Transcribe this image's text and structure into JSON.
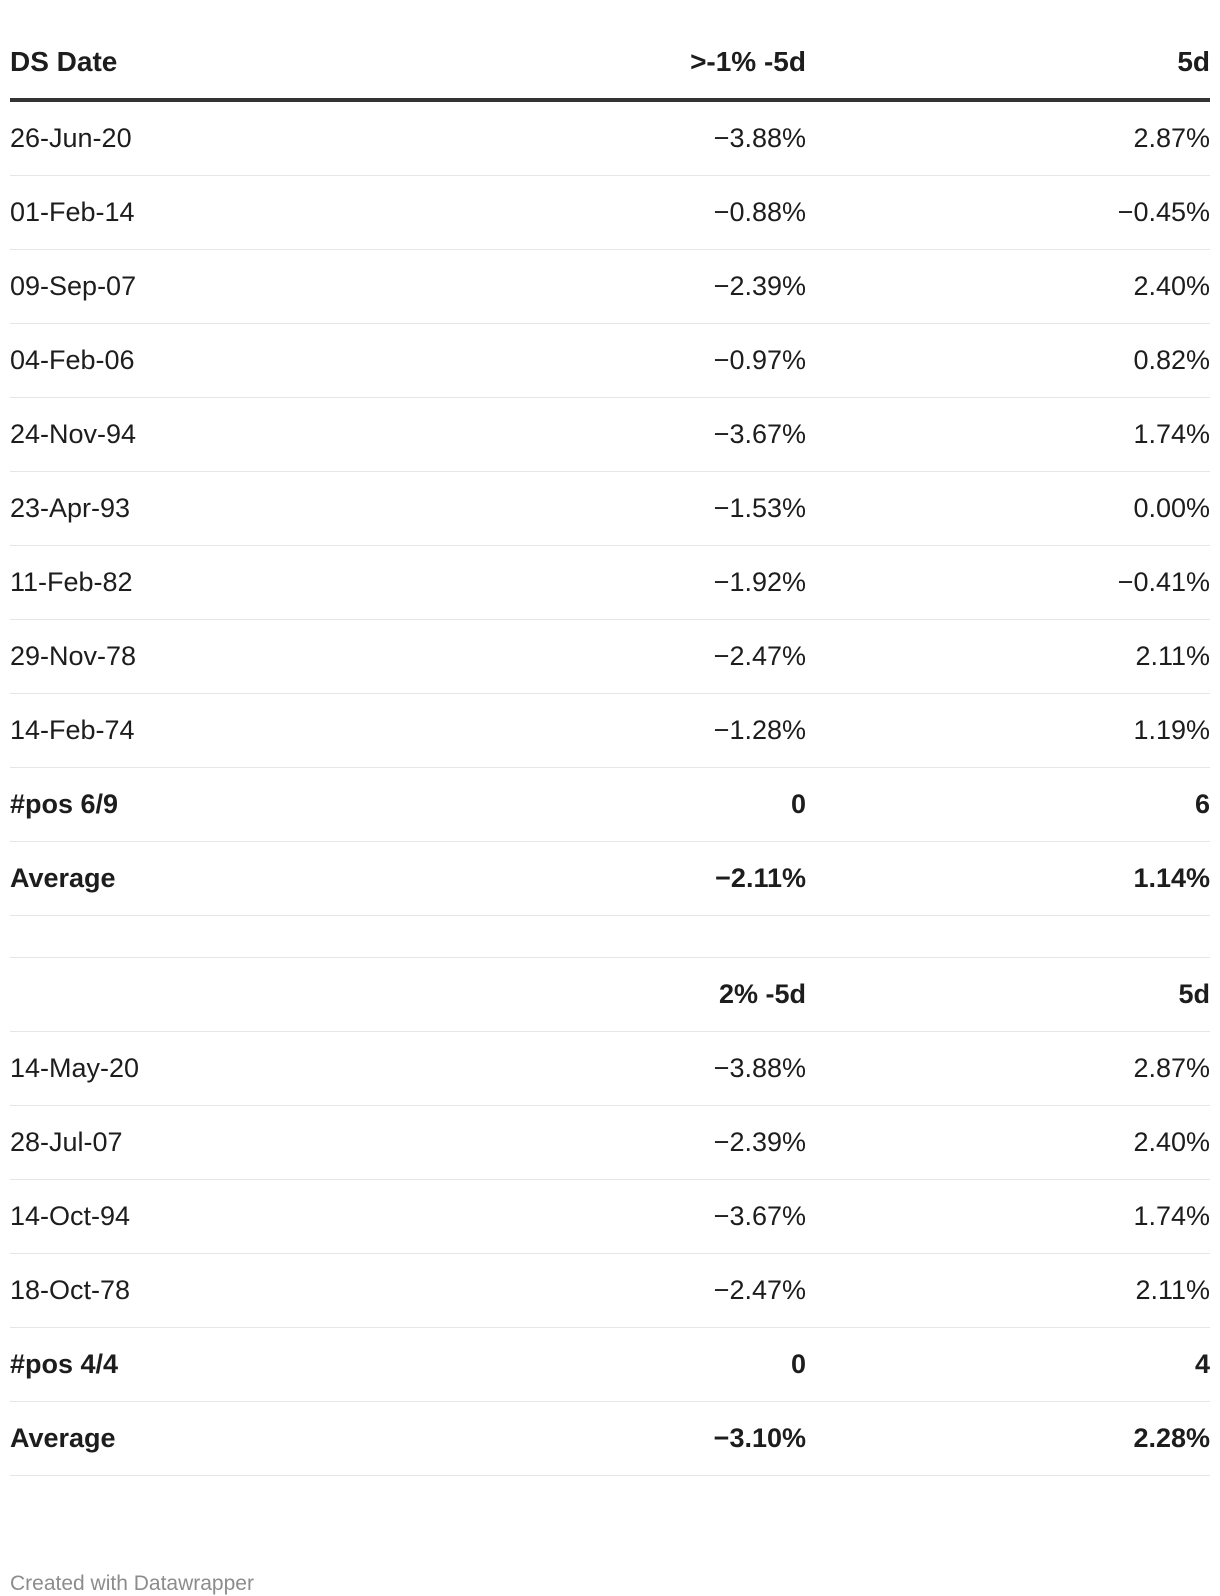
{
  "chart_data": {
    "type": "table",
    "columns": [
      "DS Date",
      ">-1% -5d",
      "5d"
    ],
    "sections": [
      {
        "rows": [
          [
            "26-Jun-20",
            "−3.88%",
            "2.87%"
          ],
          [
            "01-Feb-14",
            "−0.88%",
            "−0.45%"
          ],
          [
            "09-Sep-07",
            "−2.39%",
            "2.40%"
          ],
          [
            "04-Feb-06",
            "−0.97%",
            "0.82%"
          ],
          [
            "24-Nov-94",
            "−3.67%",
            "1.74%"
          ],
          [
            "23-Apr-93",
            "−1.53%",
            "0.00%"
          ],
          [
            "11-Feb-82",
            "−1.92%",
            "−0.41%"
          ],
          [
            "29-Nov-78",
            "−2.47%",
            "2.11%"
          ],
          [
            "14-Feb-74",
            "−1.28%",
            "1.19%"
          ]
        ],
        "summary": [
          [
            "#pos 6/9",
            "0",
            "6"
          ],
          [
            "Average",
            "−2.11%",
            "1.14%"
          ]
        ]
      },
      {
        "header": [
          "",
          "2% -5d",
          "5d"
        ],
        "rows": [
          [
            "14-May-20",
            "−3.88%",
            "2.87%"
          ],
          [
            "28-Jul-07",
            "−2.39%",
            "2.40%"
          ],
          [
            "14-Oct-94",
            "−3.67%",
            "1.74%"
          ],
          [
            "18-Oct-78",
            "−2.47%",
            "2.11%"
          ]
        ],
        "summary": [
          [
            "#pos 4/4",
            "0",
            "4"
          ],
          [
            "Average",
            "−3.10%",
            "2.28%"
          ]
        ]
      }
    ]
  },
  "footer": {
    "credit": "Created with Datawrapper"
  },
  "colors": {
    "text": "#1d1d1d",
    "header_rule": "#333333",
    "row_rule": "#e6e6e6",
    "footer_text": "#8c8c8c"
  }
}
